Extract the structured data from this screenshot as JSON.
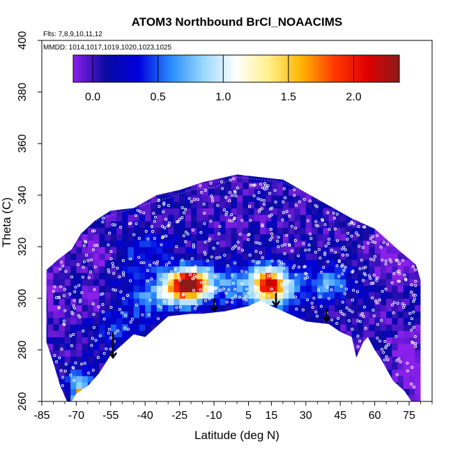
{
  "chart_data": {
    "type": "heatmap",
    "title": "ATOM3 Northbound BrCl_NOAACIMS",
    "annotations": {
      "flights": "Flts: 7,8,9,10,11,12",
      "dates": "MMDD: 1014,1017,1019,1020,1023,1025"
    },
    "xlabel": "Latitude (deg N)",
    "ylabel": "Theta (C)",
    "xlim": [
      -85,
      85
    ],
    "ylim": [
      260,
      400
    ],
    "x_ticks": [
      -85,
      -70,
      -55,
      -40,
      -25,
      -10,
      5,
      15,
      30,
      45,
      60,
      75
    ],
    "y_ticks": [
      260,
      280,
      300,
      320,
      340,
      360,
      380,
      400
    ],
    "colorbar": {
      "range": [
        -0.15,
        2.35
      ],
      "ticks": [
        0.0,
        0.5,
        1.0,
        1.5,
        2.0
      ],
      "tick_labels": [
        "0.0",
        "0.5",
        "1.0",
        "1.5",
        "2.0"
      ],
      "colors": [
        "#8a20ea",
        "#0a0aa0",
        "#0000dd",
        "#2a8cff",
        "#9ad8ff",
        "#ffffff",
        "#fff08a",
        "#ffb400",
        "#ff3a00",
        "#e00000",
        "#8b1a1a"
      ]
    },
    "field": {
      "background_value": 0.05,
      "hotspots": [
        {
          "lat": -21,
          "theta": 306,
          "peak": 2.2,
          "sx": 6,
          "sy": 4
        },
        {
          "lat": -30,
          "theta": 302,
          "peak": 0.7,
          "sx": 10,
          "sy": 5
        },
        {
          "lat": 14,
          "theta": 306,
          "peak": 1.4,
          "sx": 4,
          "sy": 4
        },
        {
          "lat": 17,
          "theta": 304,
          "peak": 0.7,
          "sx": 8,
          "sy": 6
        },
        {
          "lat": 40,
          "theta": 306,
          "peak": 0.55,
          "sx": 8,
          "sy": 5
        },
        {
          "lat": 0,
          "theta": 305,
          "peak": 0.5,
          "sx": 12,
          "sy": 6
        },
        {
          "lat": -68,
          "theta": 267,
          "peak": 0.75,
          "sx": 4,
          "sy": 4
        },
        {
          "lat": -68,
          "theta": 262,
          "peak": 1.5,
          "sx": 2,
          "sy": 2
        },
        {
          "lat": -45,
          "theta": 318,
          "peak": 0.35,
          "sx": 12,
          "sy": 6
        },
        {
          "lat": -50,
          "theta": 290,
          "peak": 0.35,
          "sx": 10,
          "sy": 8
        }
      ],
      "purple_regions": [
        {
          "lat": 68,
          "theta": 320,
          "sx": 6,
          "sy": 8
        },
        {
          "lat": 75,
          "theta": 275,
          "sx": 5,
          "sy": 8
        },
        {
          "lat": -82,
          "theta": 305,
          "sx": 3,
          "sy": 6
        },
        {
          "lat": -60,
          "theta": 318,
          "sx": 8,
          "sy": 5
        },
        {
          "lat": -63,
          "theta": 298,
          "sx": 4,
          "sy": 3
        }
      ]
    },
    "upper_boundary": [
      [
        -83,
        311
      ],
      [
        -78,
        315
      ],
      [
        -72,
        319
      ],
      [
        -68,
        325
      ],
      [
        -62,
        330
      ],
      [
        -55,
        334
      ],
      [
        -45,
        335
      ],
      [
        -35,
        340
      ],
      [
        -25,
        342
      ],
      [
        -15,
        345
      ],
      [
        -5,
        347
      ],
      [
        0,
        348
      ],
      [
        10,
        347
      ],
      [
        20,
        346
      ],
      [
        30,
        341
      ],
      [
        40,
        336
      ],
      [
        50,
        331
      ],
      [
        60,
        327
      ],
      [
        65,
        323
      ],
      [
        70,
        319
      ],
      [
        74,
        316
      ],
      [
        78,
        313
      ],
      [
        80,
        307
      ]
    ],
    "lower_boundary": [
      [
        80,
        260
      ],
      [
        76,
        260
      ],
      [
        73,
        264
      ],
      [
        68,
        268
      ],
      [
        63,
        276
      ],
      [
        60,
        280
      ],
      [
        57,
        285
      ],
      [
        55,
        283
      ],
      [
        53,
        279
      ],
      [
        52,
        277
      ],
      [
        50,
        285
      ],
      [
        45,
        287
      ],
      [
        40,
        290
      ],
      [
        30,
        291
      ],
      [
        25,
        293
      ],
      [
        20,
        295
      ],
      [
        15,
        297
      ],
      [
        10,
        299
      ],
      [
        5,
        297
      ],
      [
        -5,
        295
      ],
      [
        -15,
        294
      ],
      [
        -20,
        294
      ],
      [
        -30,
        293
      ],
      [
        -40,
        285
      ],
      [
        -45,
        286
      ],
      [
        -50,
        282
      ],
      [
        -55,
        278
      ],
      [
        -60,
        271
      ],
      [
        -65,
        266
      ],
      [
        -70,
        263
      ],
      [
        -72,
        260
      ],
      [
        -74,
        260
      ],
      [
        -77,
        266
      ],
      [
        -80,
        275
      ],
      [
        -83,
        283
      ]
    ],
    "arrows": [
      {
        "lat": -54,
        "theta_top": 287,
        "theta_bottom": 277
      },
      {
        "lat": -10,
        "theta_top": 300,
        "theta_bottom": 295
      },
      {
        "lat": 17,
        "theta_top": 302,
        "theta_bottom": 297
      },
      {
        "lat": 39,
        "theta_top": 296,
        "theta_bottom": 291
      }
    ],
    "profile_top": [
      [
        -72,
        325
      ],
      [
        -62,
        330
      ],
      [
        -45,
        335
      ],
      [
        -30,
        339
      ],
      [
        -20,
        342
      ],
      [
        -10,
        343
      ],
      [
        0,
        347
      ],
      [
        10,
        346
      ],
      [
        20,
        345
      ],
      [
        30,
        341
      ],
      [
        40,
        336
      ],
      [
        50,
        331
      ],
      [
        60,
        327
      ],
      [
        70,
        320
      ]
    ]
  }
}
